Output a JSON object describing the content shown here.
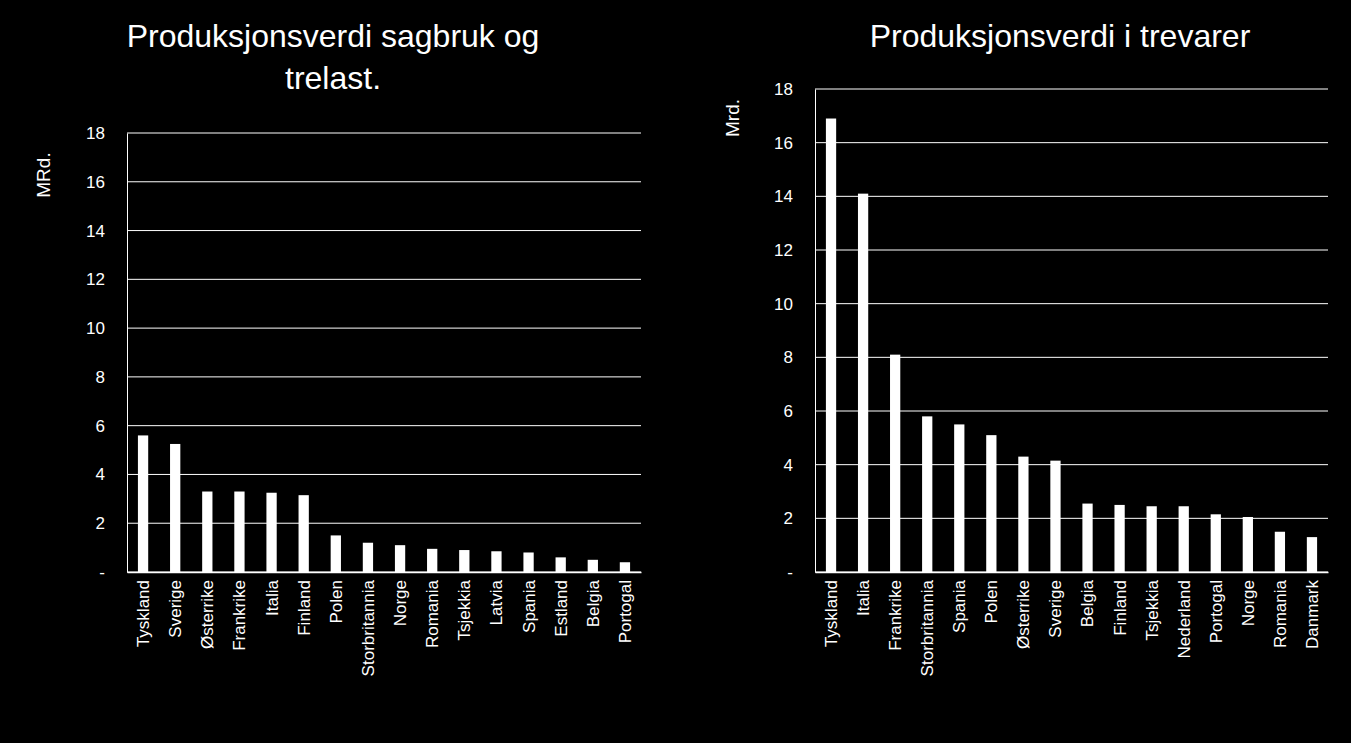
{
  "chart_data": [
    {
      "type": "bar",
      "title": "Produksjonsverdi sagbruk og trelast.",
      "y_label": "MRd.",
      "categories": [
        "Tyskland",
        "Sverige",
        "Østerrike",
        "Frankrike",
        "Italia",
        "Finland",
        "Polen",
        "Storbritannia",
        "Norge",
        "Romania",
        "Tsjekkia",
        "Latvia",
        "Spania",
        "Estland",
        "Belgia",
        "Portogal"
      ],
      "values": [
        5.6,
        5.25,
        3.3,
        3.3,
        3.25,
        3.15,
        1.5,
        1.2,
        1.1,
        0.95,
        0.9,
        0.85,
        0.8,
        0.6,
        0.5,
        0.4
      ],
      "color": "#ffffff",
      "ylim": [
        0,
        18
      ],
      "yticks": [
        {
          "value": 0,
          "label": "-"
        },
        2,
        4,
        6,
        8,
        10,
        12,
        14,
        16,
        18
      ],
      "grid": true
    },
    {
      "type": "bar",
      "title": "Produksjonsverdi i trevarer",
      "y_label": "Mrd.",
      "categories": [
        "Tyskland",
        "Italia",
        "Frankrike",
        "Storbritannia",
        "Spania",
        "Polen",
        "Østerrike",
        "Sverige",
        "Belgia",
        "Finland",
        "Tsjekkia",
        "Nederland",
        "Portogal",
        "Norge",
        "Romania",
        "Danmark"
      ],
      "values": [
        16.9,
        14.1,
        8.1,
        5.8,
        5.5,
        5.1,
        4.3,
        4.15,
        2.55,
        2.5,
        2.45,
        2.45,
        2.15,
        2.05,
        1.5,
        1.3
      ],
      "color": "#ffffff",
      "ylim": [
        0,
        18
      ],
      "yticks": [
        {
          "value": 0,
          "label": "-"
        },
        2,
        4,
        6,
        8,
        10,
        12,
        14,
        16,
        18
      ],
      "grid": true
    }
  ]
}
